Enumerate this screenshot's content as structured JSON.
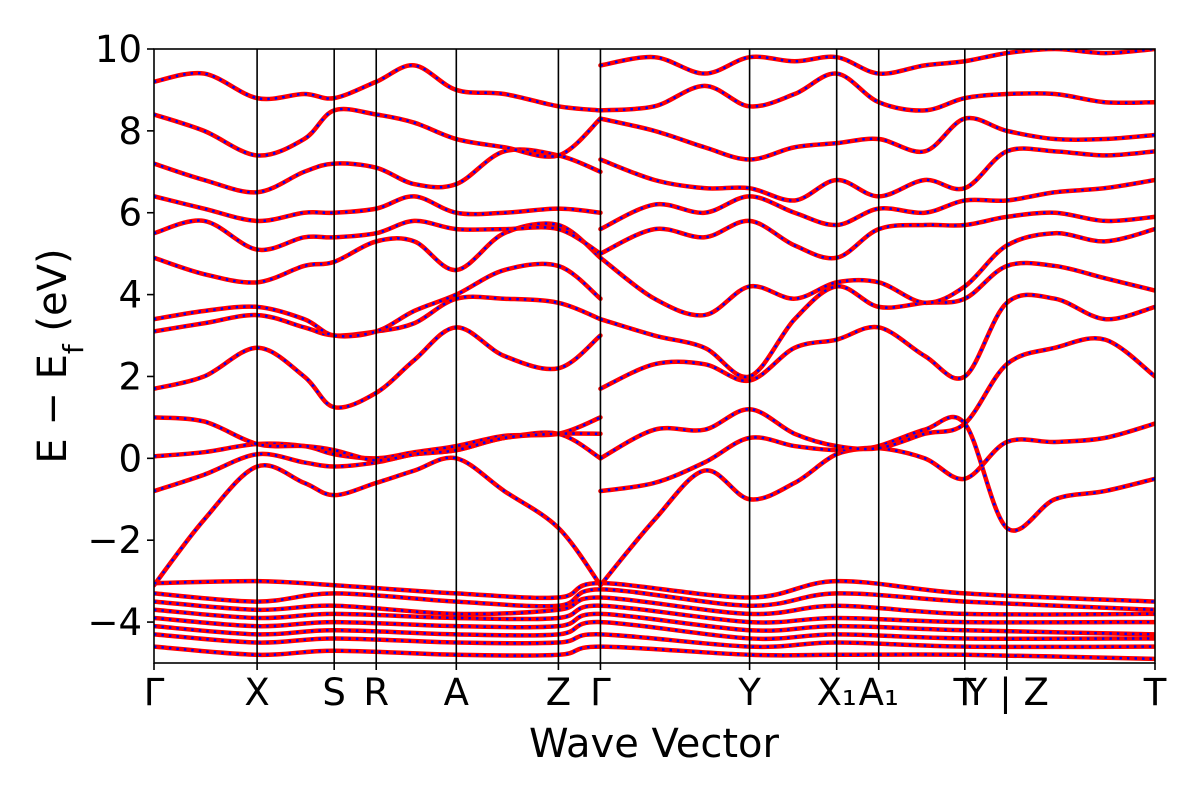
{
  "chart_data": {
    "type": "line",
    "xlabel": "Wave Vector",
    "ylabel": "E − E_f (eV)",
    "ylabel_parts": {
      "main": "E − E",
      "sub": "f",
      "unit": " (eV)"
    },
    "ylim": [
      -5,
      10
    ],
    "yticks": [
      -4,
      -2,
      0,
      2,
      4,
      6,
      8,
      10
    ],
    "ytick_labels": [
      "−4",
      "−2",
      "0",
      "2",
      "4",
      "6",
      "8",
      "10"
    ],
    "xlim": [
      0,
      1
    ],
    "xticks": [
      0.0,
      0.103,
      0.18,
      0.222,
      0.302,
      0.404,
      0.446,
      0.595,
      0.682,
      0.724,
      0.81,
      0.852,
      1.0
    ],
    "xtick_labels": [
      "Γ",
      "X",
      "S",
      "R",
      "A",
      "Z",
      "Γ",
      "Y",
      "X₁",
      "A₁",
      "T",
      "Y | Z",
      "T"
    ],
    "kpath_separators": [
      0.103,
      0.18,
      0.222,
      0.302,
      0.404,
      0.446,
      0.595,
      0.682,
      0.724,
      0.81,
      0.852
    ],
    "grid": false,
    "legend": "none",
    "series_styles": [
      {
        "role": "solid",
        "color": "#ff0000"
      },
      {
        "role": "dotted",
        "color": "#0000ff"
      }
    ],
    "bands": [
      {
        "x": [
          0,
          0.05,
          0.103,
          0.15,
          0.18,
          0.222,
          0.26,
          0.302,
          0.35,
          0.404,
          0.446
        ],
        "y": [
          -3.1,
          -1.5,
          -0.2,
          -0.6,
          -0.9,
          -0.6,
          -0.3,
          0.0,
          -0.8,
          -1.7,
          -3.1
        ]
      },
      {
        "x": [
          0,
          0.05,
          0.103,
          0.15,
          0.18,
          0.222,
          0.26,
          0.302,
          0.35,
          0.404,
          0.446
        ],
        "y": [
          -0.8,
          -0.4,
          0.1,
          -0.1,
          -0.2,
          -0.1,
          0.1,
          0.2,
          0.5,
          0.6,
          0.0
        ]
      },
      {
        "x": [
          0,
          0.05,
          0.103,
          0.15,
          0.18,
          0.222,
          0.26,
          0.302,
          0.35,
          0.404,
          0.446
        ],
        "y": [
          0.05,
          0.15,
          0.35,
          0.3,
          0.1,
          0.0,
          0.15,
          0.3,
          0.55,
          0.6,
          1.0
        ]
      },
      {
        "x": [
          0,
          0.05,
          0.103,
          0.15,
          0.18,
          0.222,
          0.26,
          0.302,
          0.35,
          0.404,
          0.446
        ],
        "y": [
          1.0,
          0.9,
          0.35,
          0.3,
          0.2,
          -0.05,
          0.1,
          0.2,
          0.5,
          0.6,
          0.6
        ]
      },
      {
        "x": [
          0,
          0.05,
          0.103,
          0.15,
          0.18,
          0.222,
          0.26,
          0.302,
          0.35,
          0.404,
          0.446
        ],
        "y": [
          1.7,
          2.0,
          2.7,
          2.0,
          1.25,
          1.6,
          2.4,
          3.2,
          2.5,
          2.2,
          3.0
        ]
      },
      {
        "x": [
          0,
          0.05,
          0.103,
          0.15,
          0.18,
          0.222,
          0.26,
          0.302,
          0.35,
          0.404,
          0.446
        ],
        "y": [
          3.1,
          3.3,
          3.5,
          3.2,
          3.0,
          3.1,
          3.3,
          3.9,
          3.9,
          3.8,
          3.4
        ]
      },
      {
        "x": [
          0,
          0.05,
          0.103,
          0.15,
          0.18,
          0.222,
          0.26,
          0.302,
          0.35,
          0.404,
          0.446
        ],
        "y": [
          3.4,
          3.6,
          3.7,
          3.4,
          3.0,
          3.1,
          3.6,
          4.0,
          4.6,
          4.7,
          3.9
        ]
      },
      {
        "x": [
          0,
          0.05,
          0.103,
          0.15,
          0.18,
          0.222,
          0.26,
          0.302,
          0.35,
          0.404,
          0.446
        ],
        "y": [
          4.9,
          4.5,
          4.3,
          4.7,
          4.8,
          5.3,
          5.3,
          4.6,
          5.5,
          5.7,
          4.9
        ]
      },
      {
        "x": [
          0,
          0.05,
          0.103,
          0.15,
          0.18,
          0.222,
          0.26,
          0.302,
          0.35,
          0.404,
          0.446
        ],
        "y": [
          5.5,
          5.8,
          5.1,
          5.4,
          5.4,
          5.5,
          5.8,
          5.6,
          5.6,
          5.6,
          5.0
        ]
      },
      {
        "x": [
          0,
          0.05,
          0.103,
          0.15,
          0.18,
          0.222,
          0.26,
          0.302,
          0.35,
          0.404,
          0.446
        ],
        "y": [
          6.4,
          6.1,
          5.8,
          6.0,
          6.0,
          6.1,
          6.4,
          6.0,
          6.0,
          6.1,
          6.0
        ]
      },
      {
        "x": [
          0,
          0.05,
          0.103,
          0.15,
          0.18,
          0.222,
          0.26,
          0.302,
          0.35,
          0.404,
          0.446
        ],
        "y": [
          7.2,
          6.8,
          6.5,
          7.0,
          7.2,
          7.1,
          6.7,
          6.7,
          7.5,
          7.4,
          7.0
        ]
      },
      {
        "x": [
          0,
          0.05,
          0.103,
          0.15,
          0.18,
          0.222,
          0.26,
          0.302,
          0.35,
          0.404,
          0.446
        ],
        "y": [
          8.4,
          8.0,
          7.4,
          7.8,
          8.5,
          8.4,
          8.2,
          7.8,
          7.6,
          7.4,
          8.3
        ]
      },
      {
        "x": [
          0,
          0.05,
          0.103,
          0.15,
          0.18,
          0.222,
          0.26,
          0.302,
          0.35,
          0.404,
          0.446
        ],
        "y": [
          9.2,
          9.4,
          8.8,
          8.9,
          8.8,
          9.2,
          9.6,
          9.0,
          8.9,
          8.6,
          8.5
        ]
      },
      {
        "x": [
          0.446,
          0.5,
          0.55,
          0.595,
          0.64,
          0.682,
          0.724,
          0.77,
          0.81,
          0.852,
          0.9,
          0.95,
          1.0
        ],
        "y": [
          -3.1,
          -1.5,
          -0.3,
          -1.0,
          -0.6,
          0.1,
          0.3,
          0.7,
          0.85,
          -1.7,
          -1.0,
          -0.8,
          -0.5
        ]
      },
      {
        "x": [
          0.446,
          0.5,
          0.55,
          0.595,
          0.64,
          0.682,
          0.724,
          0.77,
          0.81,
          0.852,
          0.9,
          0.95,
          1.0
        ],
        "y": [
          -0.8,
          -0.6,
          -0.1,
          0.5,
          0.3,
          0.2,
          0.25,
          0.0,
          -0.5,
          0.4,
          0.4,
          0.5,
          0.85
        ]
      },
      {
        "x": [
          0.446,
          0.5,
          0.55,
          0.595,
          0.64,
          0.682,
          0.724,
          0.77,
          0.81,
          0.852,
          0.9,
          0.95,
          1.0
        ],
        "y": [
          0.0,
          0.7,
          0.7,
          1.2,
          0.6,
          0.3,
          0.25,
          0.6,
          0.85,
          2.3,
          2.7,
          2.9,
          2.0
        ]
      },
      {
        "x": [
          0.446,
          0.5,
          0.55,
          0.595,
          0.64,
          0.682,
          0.724,
          0.77,
          0.81,
          0.852,
          0.9,
          0.95,
          1.0
        ],
        "y": [
          1.7,
          2.3,
          2.3,
          1.9,
          2.7,
          2.9,
          3.2,
          2.5,
          2.0,
          3.8,
          3.9,
          3.4,
          3.7
        ]
      },
      {
        "x": [
          0.446,
          0.5,
          0.55,
          0.595,
          0.64,
          0.682,
          0.724,
          0.77,
          0.81,
          0.852,
          0.9,
          0.95,
          1.0
        ],
        "y": [
          3.4,
          3.0,
          2.7,
          2.0,
          3.4,
          4.2,
          3.7,
          3.8,
          3.9,
          4.7,
          4.7,
          4.4,
          4.1
        ]
      },
      {
        "x": [
          0.446,
          0.5,
          0.55,
          0.595,
          0.64,
          0.682,
          0.724,
          0.77,
          0.81,
          0.852,
          0.9,
          0.95,
          1.0
        ],
        "y": [
          4.9,
          3.9,
          3.5,
          4.2,
          3.9,
          4.3,
          4.3,
          3.8,
          4.2,
          5.2,
          5.5,
          5.3,
          5.6
        ]
      },
      {
        "x": [
          0.446,
          0.5,
          0.55,
          0.595,
          0.64,
          0.682,
          0.724,
          0.77,
          0.81,
          0.852,
          0.9,
          0.95,
          1.0
        ],
        "y": [
          5.0,
          5.6,
          5.4,
          5.8,
          5.2,
          4.9,
          5.6,
          5.7,
          5.7,
          5.9,
          6.0,
          5.8,
          5.9
        ]
      },
      {
        "x": [
          0.446,
          0.5,
          0.55,
          0.595,
          0.64,
          0.682,
          0.724,
          0.77,
          0.81,
          0.852,
          0.9,
          0.95,
          1.0
        ],
        "y": [
          5.6,
          6.2,
          6.0,
          6.4,
          6.0,
          5.7,
          6.1,
          6.0,
          6.3,
          6.3,
          6.5,
          6.6,
          6.8
        ]
      },
      {
        "x": [
          0.446,
          0.5,
          0.55,
          0.595,
          0.64,
          0.682,
          0.724,
          0.77,
          0.81,
          0.852,
          0.9,
          0.95,
          1.0
        ],
        "y": [
          7.3,
          6.8,
          6.6,
          6.6,
          6.3,
          6.8,
          6.4,
          6.8,
          6.6,
          7.5,
          7.5,
          7.4,
          7.5
        ]
      },
      {
        "x": [
          0.446,
          0.5,
          0.55,
          0.595,
          0.64,
          0.682,
          0.724,
          0.77,
          0.81,
          0.852,
          0.9,
          0.95,
          1.0
        ],
        "y": [
          8.3,
          8.0,
          7.6,
          7.3,
          7.6,
          7.7,
          7.8,
          7.5,
          8.3,
          8.0,
          7.8,
          7.8,
          7.9
        ]
      },
      {
        "x": [
          0.446,
          0.5,
          0.55,
          0.595,
          0.64,
          0.682,
          0.724,
          0.77,
          0.81,
          0.852,
          0.9,
          0.95,
          1.0
        ],
        "y": [
          8.5,
          8.6,
          9.1,
          8.6,
          8.9,
          9.4,
          8.7,
          8.5,
          8.8,
          8.9,
          8.9,
          8.7,
          8.7
        ]
      },
      {
        "x": [
          0.446,
          0.5,
          0.55,
          0.595,
          0.64,
          0.682,
          0.724,
          0.77,
          0.81,
          0.852,
          0.9,
          0.95,
          1.0
        ],
        "y": [
          9.6,
          9.8,
          9.4,
          9.8,
          9.7,
          9.8,
          9.4,
          9.6,
          9.7,
          9.9,
          10.0,
          9.9,
          10.0
        ]
      },
      {
        "x": [
          0,
          0.103,
          0.18,
          0.302,
          0.404,
          0.446,
          0.595,
          0.682,
          0.81,
          1.0
        ],
        "y": [
          -3.05,
          -3.0,
          -3.1,
          -3.3,
          -3.4,
          -3.05,
          -3.4,
          -3.0,
          -3.3,
          -3.5
        ]
      },
      {
        "x": [
          0,
          0.103,
          0.18,
          0.302,
          0.404,
          0.446,
          0.595,
          0.682,
          0.81,
          1.0
        ],
        "y": [
          -3.3,
          -3.5,
          -3.3,
          -3.5,
          -3.6,
          -3.2,
          -3.6,
          -3.3,
          -3.5,
          -3.7
        ]
      },
      {
        "x": [
          0,
          0.103,
          0.18,
          0.302,
          0.404,
          0.446,
          0.595,
          0.682,
          0.81,
          1.0
        ],
        "y": [
          -3.5,
          -3.7,
          -3.6,
          -3.8,
          -3.7,
          -3.4,
          -3.8,
          -3.6,
          -3.8,
          -3.8
        ]
      },
      {
        "x": [
          0,
          0.103,
          0.18,
          0.302,
          0.404,
          0.446,
          0.595,
          0.682,
          0.81,
          1.0
        ],
        "y": [
          -3.7,
          -3.9,
          -3.8,
          -3.9,
          -3.9,
          -3.6,
          -4.0,
          -3.9,
          -4.0,
          -4.0
        ]
      },
      {
        "x": [
          0,
          0.103,
          0.18,
          0.302,
          0.404,
          0.446,
          0.595,
          0.682,
          0.81,
          1.0
        ],
        "y": [
          -3.9,
          -4.1,
          -4.0,
          -4.1,
          -4.1,
          -3.8,
          -4.2,
          -4.1,
          -4.2,
          -4.3
        ]
      },
      {
        "x": [
          0,
          0.103,
          0.18,
          0.302,
          0.404,
          0.446,
          0.595,
          0.682,
          0.81,
          1.0
        ],
        "y": [
          -4.1,
          -4.3,
          -4.2,
          -4.3,
          -4.3,
          -4.0,
          -4.4,
          -4.3,
          -4.4,
          -4.4
        ]
      },
      {
        "x": [
          0,
          0.103,
          0.18,
          0.302,
          0.404,
          0.446,
          0.595,
          0.682,
          0.81,
          1.0
        ],
        "y": [
          -4.3,
          -4.5,
          -4.4,
          -4.5,
          -4.5,
          -4.3,
          -4.6,
          -4.5,
          -4.6,
          -4.6
        ]
      },
      {
        "x": [
          0,
          0.103,
          0.18,
          0.302,
          0.404,
          0.446,
          0.595,
          0.682,
          0.81,
          1.0
        ],
        "y": [
          -4.6,
          -4.8,
          -4.7,
          -4.8,
          -4.8,
          -4.6,
          -4.8,
          -4.8,
          -4.8,
          -4.9
        ]
      }
    ]
  }
}
